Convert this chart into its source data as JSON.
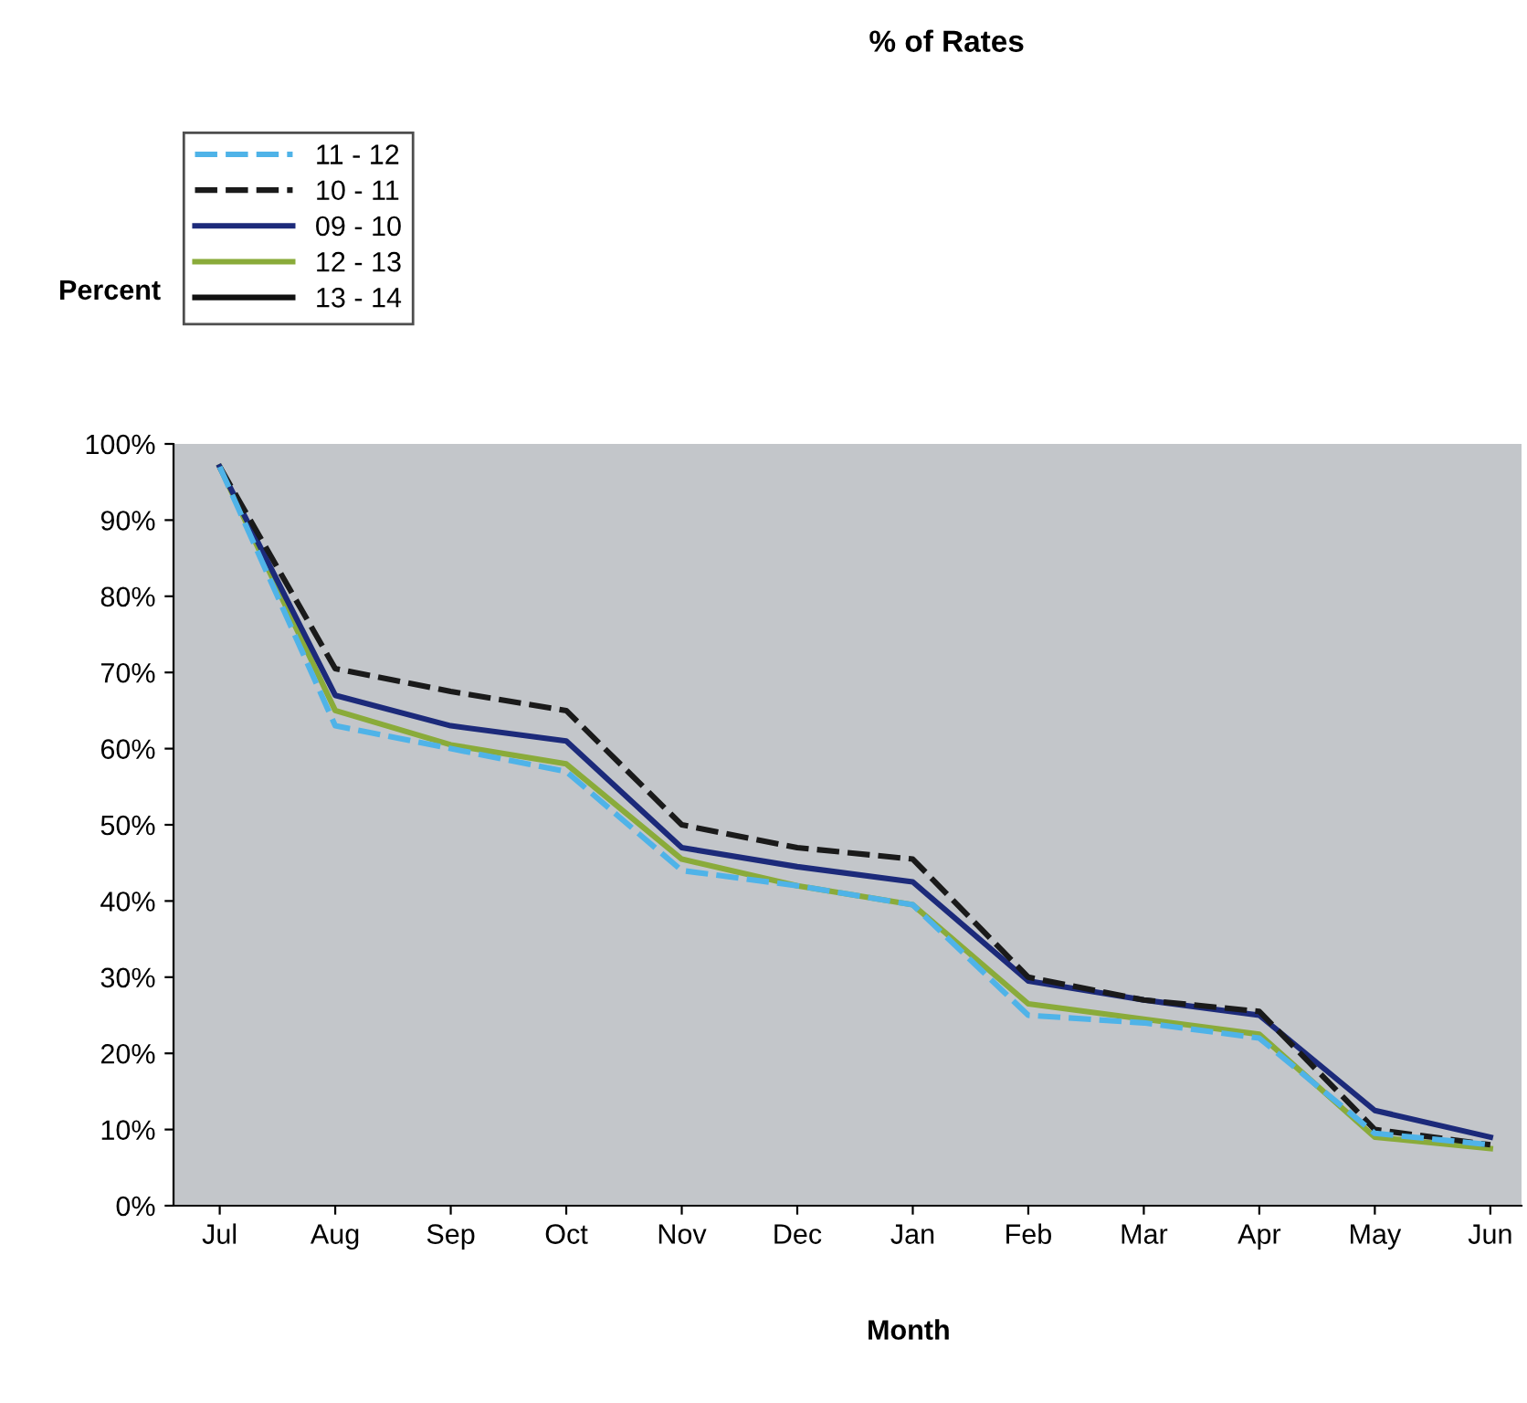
{
  "chart_data": {
    "type": "line",
    "title": "% of Rates",
    "xlabel": "Month",
    "ylabel": "Percent",
    "categories": [
      "Jul",
      "Aug",
      "Sep",
      "Oct",
      "Nov",
      "Dec",
      "Jan",
      "Feb",
      "Mar",
      "Apr",
      "May",
      "Jun"
    ],
    "ylim": [
      0,
      100
    ],
    "yticks": [
      {
        "value": 0,
        "label": "0%"
      },
      {
        "value": 10,
        "label": "10%"
      },
      {
        "value": 20,
        "label": "20%"
      },
      {
        "value": 30,
        "label": "30%"
      },
      {
        "value": 40,
        "label": "40%"
      },
      {
        "value": 50,
        "label": "50%"
      },
      {
        "value": 60,
        "label": "60%"
      },
      {
        "value": 70,
        "label": "70%"
      },
      {
        "value": 80,
        "label": "80%"
      },
      {
        "value": 90,
        "label": "90%"
      },
      {
        "value": 100,
        "label": "100%"
      }
    ],
    "grid": false,
    "legend": "top left",
    "series": [
      {
        "name": "11 - 12",
        "color": "#4fb3e8",
        "line_style": "dashed",
        "values": [
          97,
          63,
          60,
          57,
          44,
          42,
          39.5,
          25,
          24,
          22,
          9.5,
          8
        ]
      },
      {
        "name": "10 - 11",
        "color": "#1a1a1a",
        "line_style": "dashed",
        "values": [
          97,
          70.5,
          67.5,
          65,
          50,
          47,
          45.5,
          30,
          27,
          25.5,
          10,
          8
        ]
      },
      {
        "name": "09 - 10",
        "color": "#1c2a7a",
        "line_style": "solid",
        "values": [
          97,
          67,
          63,
          61,
          47,
          44.5,
          42.5,
          29.5,
          27,
          25,
          12.5,
          9
        ]
      },
      {
        "name": "12 - 13",
        "color": "#8aab3a",
        "line_style": "solid",
        "values": [
          97,
          65,
          60.5,
          58,
          45.5,
          42,
          39.5,
          26.5,
          24.5,
          22.5,
          9,
          7.5
        ]
      },
      {
        "name": "13 - 14",
        "color": "#111111",
        "line_style": "solid",
        "values": [
          null,
          null,
          null,
          null,
          null,
          null,
          null,
          null,
          null,
          null,
          null,
          null
        ]
      }
    ]
  }
}
